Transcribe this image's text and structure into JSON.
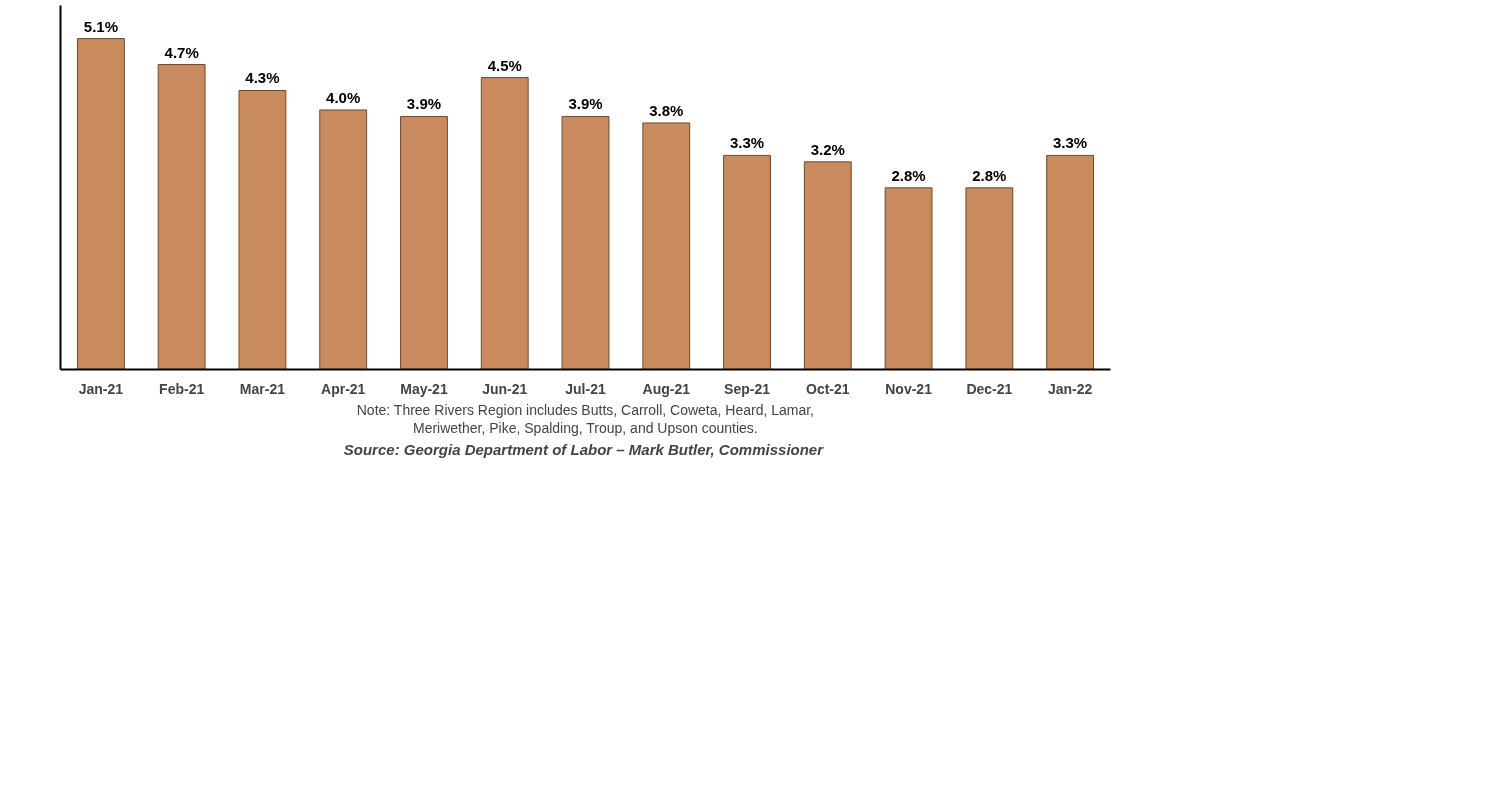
{
  "chart_data": {
    "type": "bar",
    "categories": [
      "Jan-21",
      "Feb-21",
      "Mar-21",
      "Apr-21",
      "May-21",
      "Jun-21",
      "Jul-21",
      "Aug-21",
      "Sep-21",
      "Oct-21",
      "Nov-21",
      "Dec-21",
      "Jan-22"
    ],
    "values": [
      5.1,
      4.7,
      4.3,
      4.0,
      3.9,
      4.5,
      3.9,
      3.8,
      3.3,
      3.2,
      2.8,
      2.8,
      3.3
    ],
    "value_labels": [
      "5.1%",
      "4.7%",
      "4.3%",
      "4.0%",
      "3.9%",
      "4.5%",
      "3.9%",
      "3.8%",
      "3.3%",
      "3.2%",
      "2.8%",
      "2.8%",
      "3.3%"
    ],
    "color": "#c98a5e",
    "annotations": [
      "Note: Three Rivers Region includes Butts, Carroll, Coweta, Heard, Lamar,",
      "Meriwether, Pike, Spalding, Troup, and Upson counties.",
      "Source:  Georgia Department of Labor – Mark Butler, Commissioner"
    ],
    "grid": false
  }
}
